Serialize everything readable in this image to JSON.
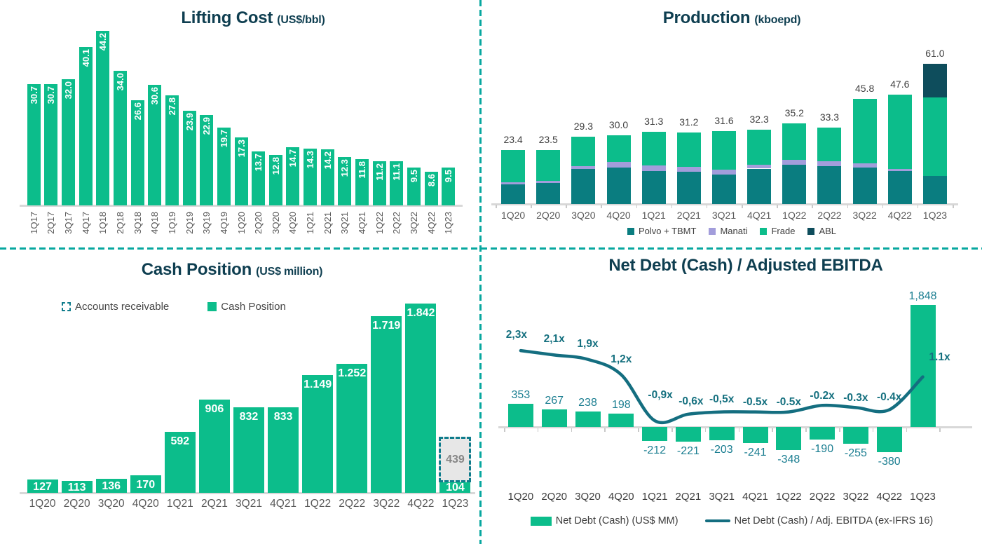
{
  "dashboard": {
    "background": "#ffffff",
    "divider_color": "#07a79f",
    "brand_green": "#0cbd8b",
    "title_color": "#0e3e50"
  },
  "chart_data": [
    {
      "id": "lifting-cost",
      "type": "bar",
      "title": "Lifting Cost",
      "subtitle": "(US$/bbl)",
      "xlabel": "",
      "ylabel": "",
      "ylim": [
        0,
        45
      ],
      "grid": false,
      "legend_position": "none",
      "bar_color": "#0cbd8b",
      "value_label_color": "#ffffff",
      "categories": [
        "1Q17",
        "2Q17",
        "3Q17",
        "4Q17",
        "1Q18",
        "2Q18",
        "3Q18",
        "4Q18",
        "1Q19",
        "2Q19",
        "3Q19",
        "4Q19",
        "1Q20",
        "2Q20",
        "3Q20",
        "4Q20",
        "1Q21",
        "2Q21",
        "3Q21",
        "4Q21",
        "1Q22",
        "2Q22",
        "3Q22",
        "4Q22",
        "1Q23"
      ],
      "values": [
        30.7,
        30.7,
        32.0,
        40.1,
        44.2,
        34.0,
        26.6,
        30.6,
        27.8,
        23.9,
        22.9,
        19.7,
        17.3,
        13.7,
        12.8,
        14.7,
        14.3,
        14.2,
        12.3,
        11.8,
        11.2,
        11.1,
        9.5,
        8.6,
        9.5
      ]
    },
    {
      "id": "production",
      "type": "stacked-bar",
      "title": "Production",
      "subtitle": "(kboepd)",
      "xlabel": "",
      "ylabel": "",
      "ylim": [
        0,
        65
      ],
      "grid": false,
      "legend_position": "bottom",
      "total_label_color": "#3f3f3f",
      "categories": [
        "1Q20",
        "2Q20",
        "3Q20",
        "4Q20",
        "1Q21",
        "2Q21",
        "3Q21",
        "4Q21",
        "1Q22",
        "2Q22",
        "3Q22",
        "4Q22",
        "1Q23"
      ],
      "series": [
        {
          "name": "Polvo + TBMT",
          "color": "#0a7d80",
          "values": [
            8.4,
            9.0,
            15.1,
            15.8,
            14.4,
            13.9,
            12.9,
            15.4,
            17.2,
            16.4,
            16.0,
            14.4,
            12.2
          ]
        },
        {
          "name": "Manati",
          "color": "#a29ddb",
          "values": [
            1.2,
            1.2,
            1.5,
            2.4,
            2.3,
            2.2,
            2.0,
            1.8,
            2.0,
            2.3,
            1.7,
            0.8,
            0.0
          ]
        },
        {
          "name": "Frade",
          "color": "#0cbd8b",
          "values": [
            13.8,
            13.3,
            12.7,
            11.8,
            14.6,
            15.1,
            16.7,
            15.1,
            16.0,
            14.6,
            28.1,
            32.4,
            34.1
          ]
        },
        {
          "name": "ABL",
          "color": "#0e4d5c",
          "values": [
            0,
            0,
            0,
            0,
            0,
            0,
            0,
            0,
            0,
            0,
            0,
            0,
            14.7
          ]
        }
      ],
      "totals": [
        23.4,
        23.5,
        29.3,
        30.0,
        31.3,
        31.2,
        31.6,
        32.3,
        35.2,
        33.3,
        45.8,
        47.6,
        61.0
      ],
      "note": "segment values estimated from bar heights; totals as labeled"
    },
    {
      "id": "cash-position",
      "type": "bar",
      "title": "Cash Position",
      "subtitle": "(US$ million)",
      "xlabel": "",
      "ylabel": "",
      "ylim": [
        0,
        1900
      ],
      "grid": false,
      "legend_position": "top-left",
      "categories": [
        "1Q20",
        "2Q20",
        "3Q20",
        "4Q20",
        "1Q21",
        "2Q21",
        "3Q21",
        "4Q21",
        "1Q22",
        "2Q22",
        "3Q22",
        "4Q22",
        "1Q23"
      ],
      "series": [
        {
          "name": "Cash Position",
          "color": "#0cbd8b",
          "label_color": "#ffffff",
          "values": [
            127,
            113,
            136,
            170,
            592,
            906,
            832,
            833,
            1149,
            1252,
            1719,
            1842,
            104
          ],
          "labels": [
            "127",
            "113",
            "136",
            "170",
            "592",
            "906",
            "832",
            "833",
            "1.149",
            "1.252",
            "1.719",
            "1.842",
            "104"
          ]
        },
        {
          "name": "Accounts receivable",
          "style": "dashed-box",
          "fill": "#e7e7e7",
          "border_color": "#0f7c8c",
          "label_color": "#868686",
          "values": [
            0,
            0,
            0,
            0,
            0,
            0,
            0,
            0,
            0,
            0,
            0,
            0,
            439
          ],
          "labels": [
            "",
            "",
            "",
            "",
            "",
            "",
            "",
            "",
            "",
            "",
            "",
            "",
            "439"
          ]
        }
      ]
    },
    {
      "id": "net-debt",
      "type": "bar+line",
      "title": "Net Debt (Cash) / Adjusted EBITDA",
      "subtitle": "",
      "xlabel": "",
      "ylabel": "",
      "grid": false,
      "legend_position": "bottom",
      "categories": [
        "1Q20",
        "2Q20",
        "3Q20",
        "4Q20",
        "1Q21",
        "2Q21",
        "3Q21",
        "4Q21",
        "1Q22",
        "2Q22",
        "3Q22",
        "4Q22",
        "1Q23"
      ],
      "bars": {
        "name": "Net Debt (Cash) (US$ MM)",
        "color": "#0cbd8b",
        "label_color": "#1b7e91",
        "values": [
          353,
          267,
          238,
          198,
          -212,
          -221,
          -203,
          -241,
          -348,
          -190,
          -255,
          -380,
          1848
        ],
        "labels": [
          "353",
          "267",
          "238",
          "198",
          "-212",
          "-221",
          "-203",
          "-241",
          "-348",
          "-190",
          "-255",
          "-380",
          "1,848"
        ]
      },
      "line": {
        "name": "Net Debt (Cash) / Adj. EBITDA (ex-IFRS 16)",
        "color": "#146e80",
        "label_color": "#15707f",
        "values": [
          2.3,
          2.1,
          1.9,
          1.2,
          -0.9,
          -0.6,
          -0.5,
          -0.5,
          -0.5,
          -0.2,
          -0.3,
          -0.4,
          1.1
        ],
        "labels": [
          "2,3x",
          "2,1x",
          "1,9x",
          "1,2x",
          "-0,9x",
          "-0,6x",
          "-0,5x",
          "-0.5x",
          "-0.5x",
          "-0.2x",
          "-0.3x",
          "-0.4x",
          "1.1x"
        ]
      }
    }
  ]
}
